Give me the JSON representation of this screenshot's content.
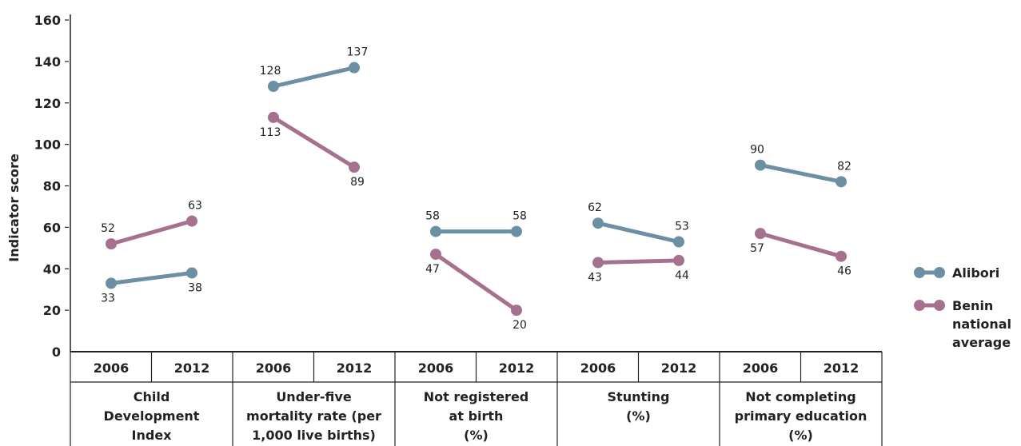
{
  "chart_data": {
    "type": "line",
    "ylabel": "Indicator score",
    "ylim": [
      0,
      160
    ],
    "yticks": [
      "0",
      "20",
      "40",
      "60",
      "80",
      "100",
      "120",
      "140",
      "160"
    ],
    "years": [
      "2006",
      "2012"
    ],
    "groups": [
      {
        "label_lines": [
          "Child",
          "Development",
          "Index"
        ],
        "alibori": [
          33,
          38
        ],
        "benin": [
          52,
          63
        ]
      },
      {
        "label_lines": [
          "Under-five",
          "mortality rate (per",
          "1,000 live births)"
        ],
        "alibori": [
          128,
          137
        ],
        "benin": [
          113,
          89
        ]
      },
      {
        "label_lines": [
          "Not registered",
          "at birth",
          "(%)"
        ],
        "alibori": [
          58,
          58
        ],
        "benin": [
          47,
          20
        ]
      },
      {
        "label_lines": [
          "Stunting",
          "(%)"
        ],
        "alibori": [
          62,
          53
        ],
        "benin": [
          43,
          44
        ]
      },
      {
        "label_lines": [
          "Not completing",
          "primary education",
          "(%)"
        ],
        "alibori": [
          90,
          82
        ],
        "benin": [
          57,
          46
        ]
      }
    ],
    "series": [
      {
        "key": "alibori",
        "name": "Alibori",
        "name_lines": [
          "Alibori"
        ],
        "color": "#6b8fa3"
      },
      {
        "key": "benin",
        "name": "Benin national average",
        "name_lines": [
          "Benin",
          "national",
          "average"
        ],
        "color": "#a6718f"
      }
    ],
    "legend_position": "right",
    "grid": false
  }
}
